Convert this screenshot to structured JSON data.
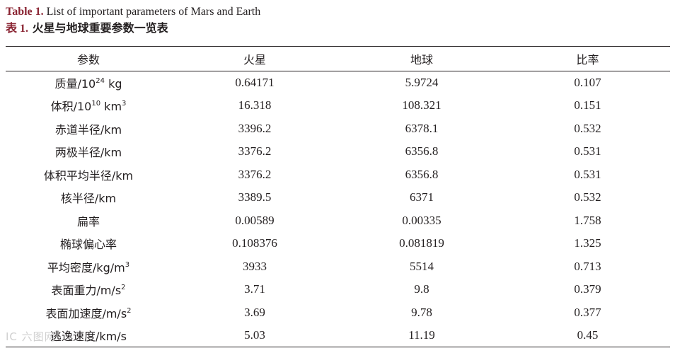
{
  "caption": {
    "en_label": "Table 1.",
    "en_text": " List of important parameters of Mars and Earth",
    "zh_label": "表 1.",
    "zh_text": "火星与地球重要参数一览表"
  },
  "table": {
    "headers": [
      "参数",
      "火星",
      "地球",
      "比率"
    ],
    "rows": [
      {
        "param": "质量/10",
        "sup": "24",
        "unit": " kg",
        "mars": "0.64171",
        "earth": "5.9724",
        "ratio": "0.107"
      },
      {
        "param": "体积/10",
        "sup": "10",
        "unit": " km",
        "sup2": "3",
        "mars": "16.318",
        "earth": "108.321",
        "ratio": "0.151"
      },
      {
        "param": "赤道半径/km",
        "mars": "3396.2",
        "earth": "6378.1",
        "ratio": "0.532"
      },
      {
        "param": "两极半径/km",
        "mars": "3376.2",
        "earth": "6356.8",
        "ratio": "0.531"
      },
      {
        "param": "体积平均半径/km",
        "mars": "3376.2",
        "earth": "6356.8",
        "ratio": "0.531"
      },
      {
        "param": "核半径/km",
        "mars": "3389.5",
        "earth": "6371",
        "ratio": "0.532"
      },
      {
        "param": "扁率",
        "mars": "0.00589",
        "earth": "0.00335",
        "ratio": "1.758"
      },
      {
        "param": "椭球偏心率",
        "mars": "0.108376",
        "earth": "0.081819",
        "ratio": "1.325"
      },
      {
        "param": "平均密度/kg/m",
        "sup": "3",
        "mars": "3933",
        "earth": "5514",
        "ratio": "0.713"
      },
      {
        "param": "表面重力/m/s",
        "sup": "2",
        "mars": "3.71",
        "earth": "9.8",
        "ratio": "0.379"
      },
      {
        "param": "表面加速度/m/s",
        "sup": "2",
        "mars": "3.69",
        "earth": "9.78",
        "ratio": "0.377"
      },
      {
        "param": "逃逸速度/km/s",
        "mars": "5.03",
        "earth": "11.19",
        "ratio": "0.45"
      }
    ]
  },
  "watermark": "IC 六图网"
}
